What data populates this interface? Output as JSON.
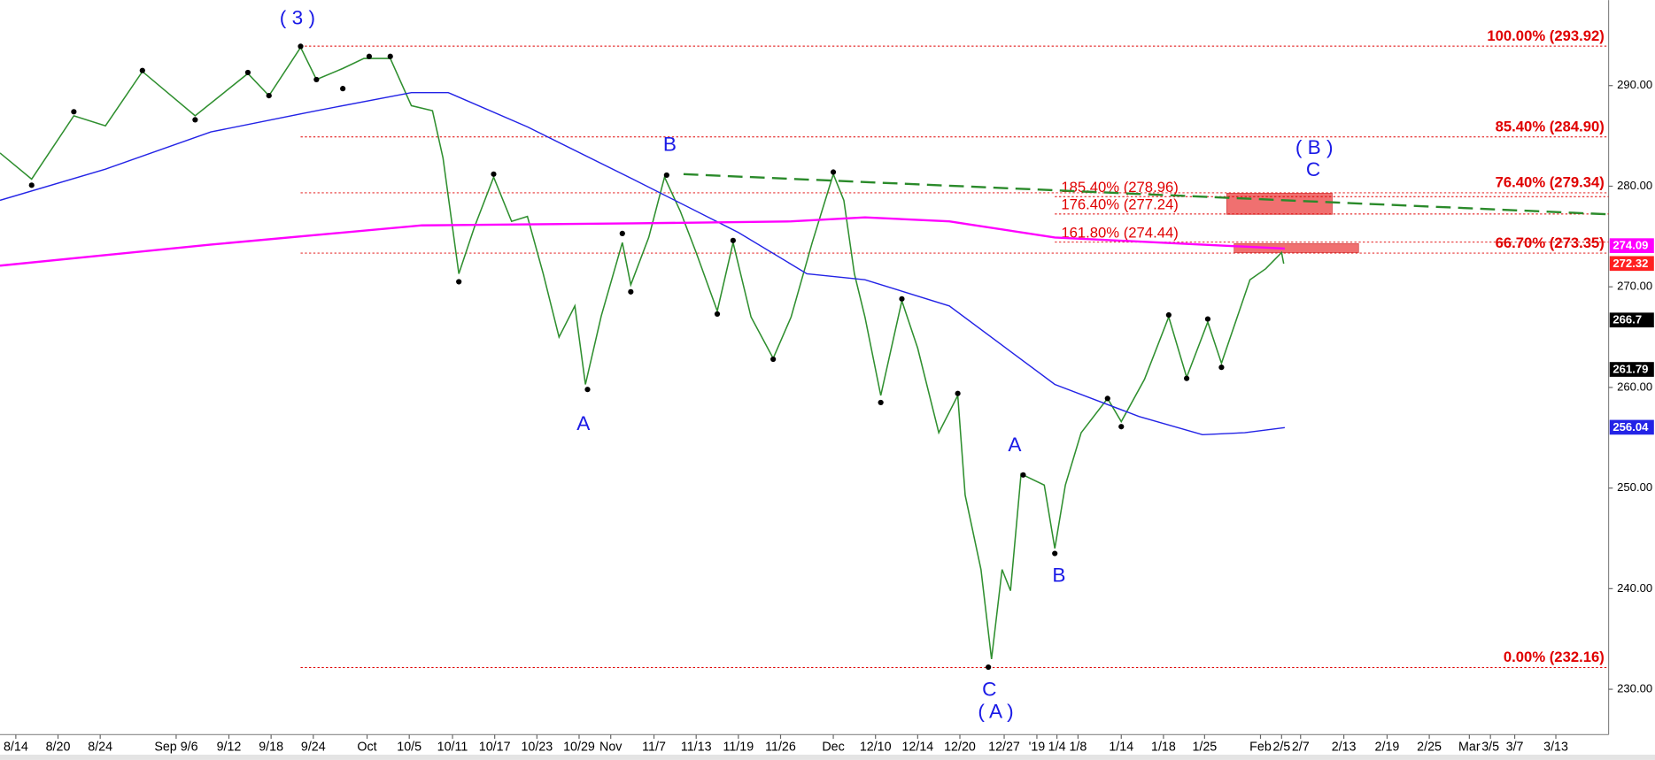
{
  "chart_data": {
    "type": "line",
    "xlim": [
      -1.5,
      151
    ],
    "ylim": [
      225.7,
      298.5
    ],
    "xticks": [
      {
        "value": 0,
        "label": "8/14"
      },
      {
        "value": 4,
        "label": "8/20"
      },
      {
        "value": 8,
        "label": "8/24"
      },
      {
        "value": 15.2,
        "label": "Sep 9/6"
      },
      {
        "value": 20.2,
        "label": "9/12"
      },
      {
        "value": 24.2,
        "label": "9/18"
      },
      {
        "value": 28.2,
        "label": "9/24"
      },
      {
        "value": 33.3,
        "label": "Oct"
      },
      {
        "value": 37.3,
        "label": "10/5"
      },
      {
        "value": 41.4,
        "label": "10/11"
      },
      {
        "value": 45.4,
        "label": "10/17"
      },
      {
        "value": 49.4,
        "label": "10/23"
      },
      {
        "value": 53.4,
        "label": "10/29"
      },
      {
        "value": 56.4,
        "label": "Nov"
      },
      {
        "value": 60.5,
        "label": "11/7"
      },
      {
        "value": 64.5,
        "label": "11/13"
      },
      {
        "value": 68.5,
        "label": "11/19"
      },
      {
        "value": 72.5,
        "label": "11/26"
      },
      {
        "value": 77.5,
        "label": "Dec"
      },
      {
        "value": 81.5,
        "label": "12/10"
      },
      {
        "value": 85.5,
        "label": "12/14"
      },
      {
        "value": 89.5,
        "label": "12/20"
      },
      {
        "value": 93.7,
        "label": "12/27"
      },
      {
        "value": 96.8,
        "label": "'19"
      },
      {
        "value": 98.7,
        "label": "1/4"
      },
      {
        "value": 100.7,
        "label": "1/8"
      },
      {
        "value": 104.8,
        "label": "1/14"
      },
      {
        "value": 108.8,
        "label": "1/18"
      },
      {
        "value": 112.7,
        "label": "1/25"
      },
      {
        "value": 118,
        "label": "Feb"
      },
      {
        "value": 120,
        "label": "2/5"
      },
      {
        "value": 121.8,
        "label": "2/7"
      },
      {
        "value": 125.9,
        "label": "2/13"
      },
      {
        "value": 130,
        "label": "2/19"
      },
      {
        "value": 134,
        "label": "2/25"
      },
      {
        "value": 137.8,
        "label": "Mar"
      },
      {
        "value": 139.8,
        "label": "3/5"
      },
      {
        "value": 142.1,
        "label": "3/7"
      },
      {
        "value": 146,
        "label": "3/13"
      }
    ],
    "yticks": [
      {
        "value": 230,
        "label": "230.00"
      },
      {
        "value": 240,
        "label": "240.00"
      },
      {
        "value": 250,
        "label": "250.00"
      },
      {
        "value": 260,
        "label": "260.00"
      },
      {
        "value": 270,
        "label": "270.00"
      },
      {
        "value": 280,
        "label": "280.00"
      },
      {
        "value": 290,
        "label": "290.00"
      }
    ],
    "series": [
      {
        "color": "#2f8f2f",
        "x": [
          -1.5,
          1.5,
          5.5,
          8.5,
          12,
          17,
          22,
          24,
          27,
          28.5,
          31,
          33,
          35.5,
          37.5,
          39.5,
          40.5,
          42,
          43.5,
          45.3,
          47,
          48.5,
          50,
          51.5,
          53,
          54,
          55.5,
          57.5,
          58.3,
          60,
          61.5,
          63,
          64.5,
          66.5,
          68,
          69.7,
          71.8,
          73.5,
          75.5,
          77.5,
          78.5,
          79.5,
          80.5,
          82,
          84,
          85.5,
          87.5,
          89.3,
          90,
          91.5,
          92.5,
          93.5,
          94.3,
          95.3,
          97.5,
          98.5,
          99.5,
          101,
          103.5,
          104.8,
          107,
          109.3,
          111,
          113,
          114.3,
          117,
          118.5,
          120,
          120.2
        ],
        "values": [
          283.3,
          280.7,
          287,
          286,
          291.4,
          287,
          291.2,
          289,
          293.8,
          290.6,
          291.7,
          292.7,
          292.7,
          288,
          287.5,
          282.8,
          271.3,
          276,
          280.9,
          276.5,
          277,
          271.3,
          265,
          268.1,
          260.3,
          267.1,
          274.4,
          270.2,
          274.9,
          280.9,
          277.5,
          273.4,
          267.6,
          274.4,
          267,
          262.9,
          267,
          274.4,
          281.2,
          278.6,
          271.3,
          267,
          259.2,
          268.6,
          263.9,
          255.5,
          259.2,
          249.3,
          241.9,
          233,
          241.9,
          239.8,
          251.4,
          250.3,
          244,
          250.3,
          255.5,
          258.9,
          256.6,
          260.8,
          267,
          261,
          266.5,
          262.4,
          270.7,
          271.8,
          273.4,
          272.3
        ]
      },
      {
        "color": "#2323e6",
        "x": [
          -1.5,
          8.5,
          18.5,
          28.5,
          37.5,
          41,
          48.5,
          58.5,
          68.5,
          75,
          80.5,
          88.5,
          98.5,
          106.5,
          112.5,
          116.5,
          120.3
        ],
        "values": [
          278.6,
          281.7,
          285.4,
          287.5,
          289.3,
          289.3,
          285.9,
          280.7,
          275.4,
          271.3,
          270.7,
          268.1,
          260.3,
          257.1,
          255.3,
          255.5,
          256.0
        ]
      },
      {
        "color": "#ff00ff",
        "x": [
          -1.5,
          18.5,
          38.5,
          58.5,
          73.5,
          80.5,
          88.5,
          98.5,
          108.5,
          120.3
        ],
        "values": [
          272.1,
          274.2,
          276.1,
          276.3,
          276.5,
          276.9,
          276.5,
          274.9,
          274.4,
          273.8
        ]
      }
    ],
    "pivots": {
      "color": "#000000",
      "x": [
        1.5,
        5.5,
        12,
        17,
        22,
        24,
        27,
        28.5,
        31,
        33.5,
        35.5,
        42,
        45.3,
        54.2,
        57.5,
        58.3,
        61.7,
        66.5,
        68,
        71.8,
        77.5,
        82,
        84,
        89.3,
        92.2,
        95.5,
        98.5,
        103.5,
        104.8,
        109.3,
        111,
        113,
        114.3
      ],
      "values": [
        280.1,
        287.4,
        291.5,
        286.6,
        291.3,
        289.0,
        293.9,
        290.6,
        289.7,
        292.9,
        292.9,
        270.5,
        281.2,
        259.8,
        275.3,
        269.5,
        281.1,
        267.3,
        274.6,
        262.8,
        281.4,
        258.5,
        268.8,
        259.4,
        232.2,
        251.3,
        243.5,
        258.9,
        256.1,
        267.2,
        260.9,
        266.8,
        262.0
      ]
    },
    "trendline": {
      "color": "#2a8a2a",
      "x": [
        63.3,
        151
      ],
      "values": [
        281.2,
        277.2
      ]
    },
    "fib_levels": [
      {
        "value": 293.92,
        "label": "100.00% (293.92)"
      },
      {
        "value": 284.9,
        "label": "85.40% (284.90)"
      },
      {
        "value": 279.34,
        "label": "76.40% (279.34)"
      },
      {
        "value": 273.35,
        "label": "66.70% (273.35)"
      },
      {
        "value": 232.16,
        "label": "0.00% (232.16)"
      }
    ],
    "extension_levels": [
      {
        "value": 278.96,
        "label": "185.40% (278.96)"
      },
      {
        "value": 277.24,
        "label": "176.40% (277.24)"
      },
      {
        "value": 274.44,
        "label": "161.80% (274.44)"
      }
    ],
    "level_color": "#e00000",
    "zones": [
      {
        "x": [
          114.8,
          124.8
        ],
        "values": [
          277.2,
          279.3
        ]
      },
      {
        "x": [
          115.5,
          127.3
        ],
        "values": [
          273.4,
          274.3
        ]
      }
    ],
    "zone_color": "#f07070",
    "annotations": [
      "( 3 )",
      "B",
      "A",
      "A",
      "B",
      "C",
      "( A )",
      "( B )",
      "C"
    ],
    "annotation_color": "#1a1ae6",
    "price_labels": [
      {
        "value": 274.09,
        "color": "#ff00ff"
      },
      {
        "value": 272.32,
        "color": "#ff2020"
      },
      {
        "value": 266.7,
        "color": "#000000"
      },
      {
        "value": 261.79,
        "color": "#000000"
      },
      {
        "value": 256.04,
        "color": "#2323e6"
      }
    ]
  }
}
